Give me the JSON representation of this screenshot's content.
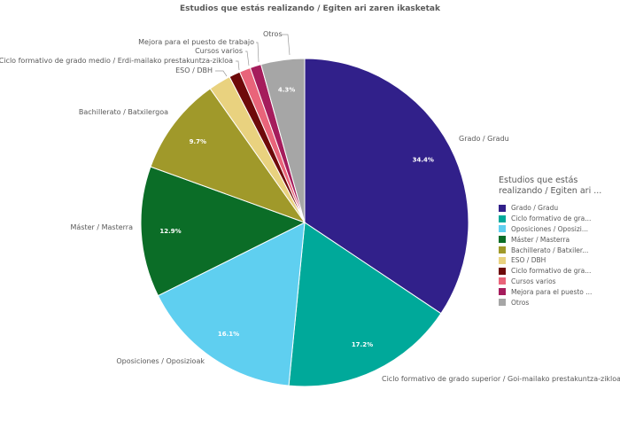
{
  "chart_data": {
    "type": "pie",
    "title": "Estudios que estás realizando / Egiten ari zaren ikasketak",
    "slices": [
      {
        "label": "Grado / Gradu",
        "legend_label": "Grado / Gradu",
        "value": 34.4,
        "value_label": "34.4%",
        "color": "#31208a"
      },
      {
        "label": "Ciclo formativo de grado superior / Goi-mailako prestakuntza-zikloa",
        "legend_label": "Ciclo formativo de gra...",
        "value": 17.2,
        "value_label": "17.2%",
        "color": "#00a99a"
      },
      {
        "label": "Oposiciones / Oposizioak",
        "legend_label": "Oposiciones / Oposizi...",
        "value": 16.1,
        "value_label": "16.1%",
        "color": "#5fcff0"
      },
      {
        "label": "Máster / Masterra",
        "legend_label": "Máster / Masterra",
        "value": 12.9,
        "value_label": "12.9%",
        "color": "#0b6d27"
      },
      {
        "label": "Bachillerato / Batxilergoa",
        "legend_label": "Bachillerato / Batxiler...",
        "value": 9.7,
        "value_label": "9.7%",
        "color": "#a0992a"
      },
      {
        "label": "ESO / DBH",
        "legend_label": "ESO / DBH",
        "value": 2.2,
        "value_label": "",
        "color": "#e9d27f"
      },
      {
        "label": "Ciclo formativo de grado medio / Erdi-mailako prestakuntza-zikloa",
        "legend_label": "Ciclo formativo de gra...",
        "value": 1.1,
        "value_label": "",
        "color": "#6e0a0a"
      },
      {
        "label": "Cursos varios",
        "legend_label": "Cursos varios",
        "value": 1.1,
        "value_label": "",
        "color": "#e9647a"
      },
      {
        "label": "Mejora para el puesto de trabajo",
        "legend_label": "Mejora para el puesto ...",
        "value": 1.1,
        "value_label": "",
        "color": "#a51c5c"
      },
      {
        "label": "Otros",
        "legend_label": "Otros",
        "value": 4.3,
        "value_label": "4.3%",
        "color": "#a6a6a6"
      }
    ],
    "legend": {
      "title": "Estudios que estás realizando / Egiten ari ...",
      "placement": "right"
    }
  }
}
